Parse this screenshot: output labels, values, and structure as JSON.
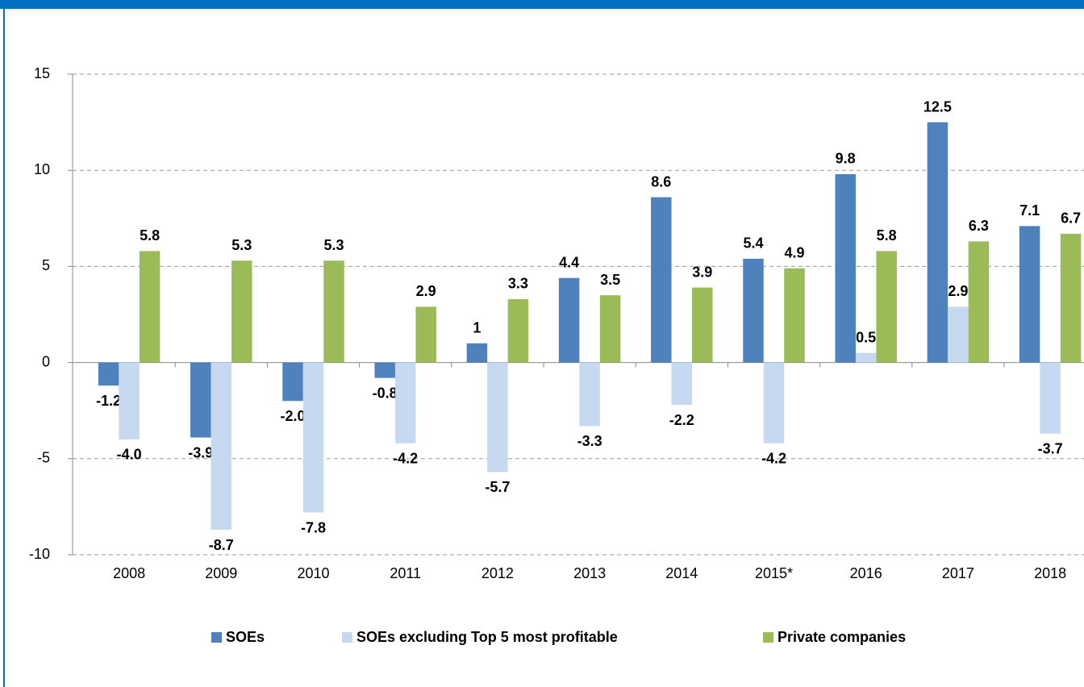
{
  "chart_data": {
    "type": "bar",
    "categories": [
      "2008",
      "2009",
      "2010",
      "2011",
      "2012",
      "2013",
      "2014",
      "2015*",
      "2016",
      "2017",
      "2018"
    ],
    "series": [
      {
        "name": "SOEs",
        "color": "#4f81bd",
        "values": [
          -1.2,
          -3.9,
          -2.0,
          -0.8,
          1,
          4.4,
          8.6,
          5.4,
          9.8,
          12.5,
          7.1
        ],
        "value_labels": [
          "-1.2",
          "-3.9",
          "-2.0",
          "-0.8",
          "1",
          "4.4",
          "8.6",
          "5.4",
          "9.8",
          "12.5",
          "7.1"
        ]
      },
      {
        "name": "SOEs excluding Top 5 most profitable",
        "color": "#c6d9f1",
        "values": [
          -4.0,
          -8.7,
          -7.8,
          -4.2,
          -5.7,
          -3.3,
          -2.2,
          -4.2,
          0.5,
          2.9,
          -3.7
        ],
        "value_labels": [
          "-4.0",
          "-8.7",
          "-7.8",
          "-4.2",
          "-5.7",
          "-3.3",
          "-2.2",
          "-4.2",
          "0.5",
          "2.9",
          "-3.7"
        ]
      },
      {
        "name": "Private companies",
        "color": "#9bbb59",
        "values": [
          5.8,
          5.3,
          5.3,
          2.9,
          3.3,
          3.5,
          3.9,
          4.9,
          5.8,
          6.3,
          6.7
        ],
        "value_labels": [
          "5.8",
          "5.3",
          "5.3",
          "2.9",
          "3.3",
          "3.5",
          "3.9",
          "4.9",
          "5.8",
          "6.3",
          "6.7"
        ]
      }
    ],
    "ylim": [
      -10,
      15
    ],
    "yticks": [
      -10,
      -5,
      0,
      5,
      10,
      15
    ],
    "grid": true,
    "legend": "bottom"
  }
}
